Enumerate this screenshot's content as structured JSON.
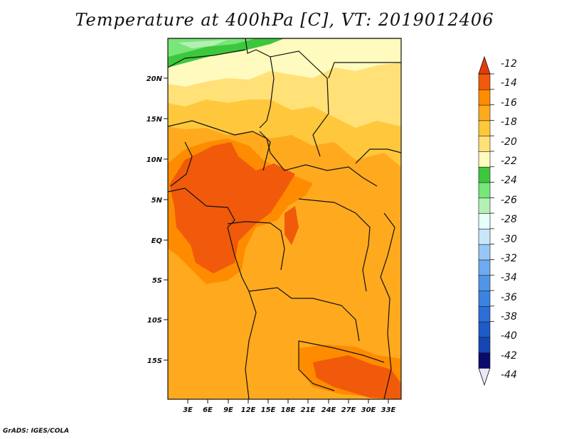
{
  "title": "Temperature at 400hPa [C], VT: 2019012406",
  "credit": "GrADS: IGES/COLA",
  "map": {
    "lat_ticks": [
      "20N",
      "15N",
      "10N",
      "5N",
      "EQ",
      "5S",
      "10S",
      "15S"
    ],
    "lon_ticks": [
      "3E",
      "6E",
      "9E",
      "12E",
      "15E",
      "18E",
      "21E",
      "24E",
      "27E",
      "30E",
      "33E"
    ]
  },
  "colorbar": {
    "labels": [
      "-12",
      "-14",
      "-16",
      "-18",
      "-20",
      "-22",
      "-24",
      "-26",
      "-28",
      "-30",
      "-32",
      "-34",
      "-36",
      "-38",
      "-40",
      "-42",
      "-44"
    ],
    "colors": [
      "#e8e8f8",
      "#0a0a6e",
      "#1446b4",
      "#1e5ac8",
      "#2d6ed7",
      "#3c82e1",
      "#5096e6",
      "#6eaaf0",
      "#96c8f5",
      "#c8e6fa",
      "#e6fffa",
      "#b4f0b4",
      "#78e678",
      "#3cc83c",
      "#fffabe",
      "#ffe178",
      "#ffc83c",
      "#ffaa1e",
      "#ff8c00",
      "#f05a0a",
      "#e63c0a"
    ]
  }
}
